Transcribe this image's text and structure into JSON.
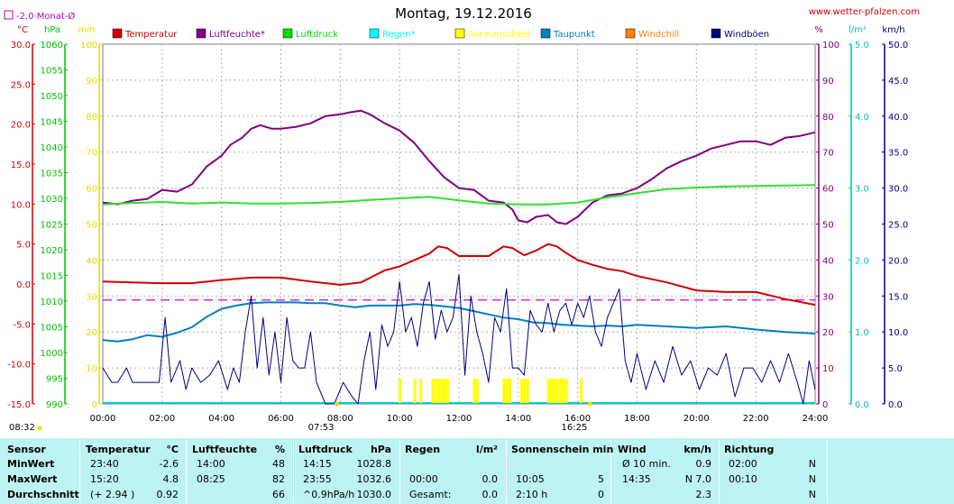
{
  "site": "www.wetter-pfalzen.com",
  "chart_data": {
    "type": "line",
    "title": "Montag, 19.12.2016",
    "monthly_avg_label": "-2.0 Monat-Ø",
    "monthly_avg_value": -2.0,
    "legend": [
      {
        "name": "Temperatur",
        "color": "#d00000"
      },
      {
        "name": "Luftfeuchte*",
        "color": "#800080"
      },
      {
        "name": "Luftdruck",
        "color": "#00e000"
      },
      {
        "name": "Regen*",
        "color": "#00ffff"
      },
      {
        "name": "Sonnenschein",
        "color": "#ffff00"
      },
      {
        "name": "Taupunkt",
        "color": "#0080c0"
      },
      {
        "name": "Windchill",
        "color": "#ff8000"
      },
      {
        "name": "Windböen",
        "color": "#000080"
      }
    ],
    "axes": {
      "temp": {
        "unit": "°C",
        "ylim": [
          -15,
          30
        ],
        "ticks": [
          "30.0",
          "25.0",
          "20.0",
          "15.0",
          "10.0",
          "5.0",
          "0.0",
          "-5.0",
          "-10.0",
          "-15.0"
        ],
        "color": "#d00000"
      },
      "pressure": {
        "unit": "hPa",
        "ylim": [
          990,
          1060
        ],
        "ticks": [
          "1060",
          "1055",
          "1050",
          "1045",
          "1040",
          "1035",
          "1030",
          "1025",
          "1020",
          "1015",
          "1010",
          "1005",
          "1000",
          "995",
          "990"
        ],
        "color": "#00c000"
      },
      "sunmin": {
        "unit": "min",
        "ylim": [
          0,
          100
        ],
        "ticks": [
          "100",
          "90",
          "80",
          "70",
          "60",
          "50",
          "40",
          "30",
          "20",
          "10",
          "0"
        ],
        "color": "#e0e000"
      },
      "humidity": {
        "unit": "%",
        "ylim": [
          0,
          100
        ],
        "ticks": [
          "100",
          "90",
          "80",
          "70",
          "60",
          "50",
          "40",
          "30",
          "20",
          "10",
          "0"
        ],
        "color": "#800080"
      },
      "rain": {
        "unit": "l/m²",
        "ylim": [
          0,
          5
        ],
        "ticks": [
          "5.0",
          "4.0",
          "3.0",
          "2.0",
          "1.0",
          "0.0"
        ],
        "color": "#00c0c0"
      },
      "wind": {
        "unit": "km/h",
        "ylim": [
          0,
          50
        ],
        "ticks": [
          "50.0",
          "45.0",
          "40.0",
          "35.0",
          "30.0",
          "25.0",
          "20.0",
          "15.0",
          "10.0",
          "5.0",
          "0.0"
        ],
        "color": "#000080"
      }
    },
    "xticks": [
      "00:00",
      "02:00",
      "04:00",
      "06:00",
      "08:00",
      "10:00",
      "12:00",
      "14:00",
      "16:00",
      "18:00",
      "20:00",
      "22:00",
      "24:00"
    ],
    "sunrise": "07:53",
    "sunset": "16:25",
    "sunshine_start": "08:32",
    "series": [
      {
        "name": "Temperatur",
        "axis": "temp",
        "x": [
          0,
          1,
          2,
          3,
          4,
          5,
          6,
          7,
          8,
          8.7,
          9.5,
          10,
          10.5,
          11,
          11.3,
          11.6,
          12,
          12.5,
          13,
          13.5,
          13.8,
          14.2,
          14.6,
          15,
          15.3,
          15.6,
          16,
          16.5,
          17,
          17.5,
          18,
          19,
          20,
          21,
          22,
          23,
          24
        ],
        "y": [
          0.3,
          0.2,
          0.1,
          0.1,
          0.5,
          0.8,
          0.8,
          0.3,
          -0.1,
          0.2,
          1.7,
          2.2,
          3.0,
          3.8,
          4.7,
          4.5,
          3.5,
          3.5,
          3.5,
          4.7,
          4.5,
          3.6,
          4.2,
          5.0,
          4.7,
          3.9,
          3.0,
          2.4,
          1.9,
          1.6,
          1.0,
          0.2,
          -0.8,
          -1.0,
          -1.0,
          -1.9,
          -2.6
        ]
      },
      {
        "name": "Luftfeuchte*",
        "axis": "humidity",
        "x": [
          0,
          0.5,
          1,
          1.5,
          2,
          2.5,
          3,
          3.5,
          4,
          4.3,
          4.7,
          5,
          5.3,
          5.7,
          6,
          6.5,
          7,
          7.5,
          8,
          8.3,
          8.7,
          9,
          9.5,
          10,
          10.5,
          11,
          11.5,
          12,
          12.5,
          13,
          13.5,
          13.8,
          14,
          14.3,
          14.6,
          15,
          15.3,
          15.6,
          16,
          16.5,
          17,
          17.5,
          18,
          18.5,
          19,
          19.5,
          20,
          20.5,
          21,
          21.5,
          22,
          22.5,
          23,
          23.5,
          24
        ],
        "y": [
          56,
          55.5,
          56.5,
          57,
          59.5,
          59,
          61,
          66,
          69,
          72,
          74,
          76.5,
          77.5,
          76.5,
          76.5,
          77,
          78,
          80,
          80.5,
          81,
          81.5,
          80.5,
          78,
          76,
          72.5,
          67.5,
          63,
          60,
          59.5,
          56.5,
          56,
          54,
          51,
          50.5,
          52,
          52.5,
          50.5,
          50,
          52,
          56,
          58,
          58.5,
          60,
          62.5,
          65.5,
          67.5,
          69,
          71,
          72,
          73,
          73,
          72,
          74,
          74.5,
          75.5
        ]
      },
      {
        "name": "Luftdruck",
        "axis": "pressure",
        "x": [
          0,
          1,
          2,
          3,
          4,
          5,
          6,
          7,
          8,
          9,
          10,
          11,
          12,
          13,
          14,
          15,
          16,
          17,
          18,
          19,
          20,
          21,
          22,
          23,
          24
        ],
        "y": [
          1028.8,
          1029.1,
          1029.3,
          1029.0,
          1029.2,
          1029.0,
          1029.0,
          1029.1,
          1029.3,
          1029.7,
          1030.0,
          1030.3,
          1029.6,
          1029.0,
          1028.8,
          1028.8,
          1029.2,
          1030.2,
          1031.0,
          1031.8,
          1032.1,
          1032.3,
          1032.4,
          1032.5,
          1032.6
        ]
      },
      {
        "name": "Taupunkt",
        "axis": "temp",
        "x": [
          0,
          0.5,
          1,
          1.5,
          2,
          2.5,
          3,
          3.5,
          4,
          4.5,
          5,
          5.5,
          6,
          6.5,
          7,
          7.5,
          8,
          8.5,
          9,
          9.5,
          10,
          10.5,
          11,
          11.5,
          12,
          12.5,
          13,
          13.5,
          14,
          14.5,
          15,
          15.5,
          16,
          16.5,
          17,
          17.5,
          18,
          19,
          20,
          21,
          22,
          23,
          24
        ],
        "y": [
          -7.0,
          -7.2,
          -6.9,
          -6.4,
          -6.6,
          -6.1,
          -5.4,
          -4.1,
          -3.1,
          -2.7,
          -2.4,
          -2.3,
          -2.3,
          -2.3,
          -2.4,
          -2.4,
          -2.7,
          -2.9,
          -2.7,
          -2.7,
          -2.7,
          -2.5,
          -2.6,
          -2.8,
          -3.0,
          -3.4,
          -3.8,
          -4.2,
          -4.4,
          -4.8,
          -4.9,
          -5.1,
          -5.2,
          -5.3,
          -5.2,
          -5.3,
          -5.1,
          -5.3,
          -5.5,
          -5.3,
          -5.7,
          -6.0,
          -6.2
        ]
      },
      {
        "name": "Windböen",
        "axis": "wind",
        "x": [
          0,
          0.3,
          0.5,
          0.8,
          1,
          1.3,
          1.6,
          1.9,
          2.1,
          2.3,
          2.6,
          2.8,
          3,
          3.3,
          3.6,
          3.9,
          4.2,
          4.4,
          4.6,
          4.8,
          5,
          5.2,
          5.4,
          5.6,
          5.8,
          6,
          6.2,
          6.4,
          6.6,
          6.8,
          7,
          7.2,
          7.5,
          7.8,
          8.1,
          8.4,
          8.6,
          8.8,
          9,
          9.2,
          9.4,
          9.6,
          9.8,
          10,
          10.2,
          10.4,
          10.6,
          10.8,
          11,
          11.2,
          11.4,
          11.6,
          11.8,
          12,
          12.2,
          12.4,
          12.6,
          12.8,
          13,
          13.2,
          13.4,
          13.6,
          13.8,
          14,
          14.2,
          14.4,
          14.6,
          14.8,
          15,
          15.2,
          15.4,
          15.6,
          15.8,
          16,
          16.2,
          16.4,
          16.6,
          16.8,
          17,
          17.2,
          17.4,
          17.6,
          17.8,
          18,
          18.3,
          18.6,
          18.9,
          19.2,
          19.5,
          19.8,
          20.1,
          20.4,
          20.7,
          21,
          21.3,
          21.6,
          21.9,
          22.2,
          22.5,
          22.8,
          23.1,
          23.4,
          23.6,
          23.8,
          24
        ],
        "y": [
          5,
          3,
          3,
          5,
          3,
          3,
          3,
          3,
          12,
          3,
          6,
          2,
          5,
          3,
          4,
          6,
          2,
          5,
          3,
          10,
          15,
          5,
          12,
          4,
          10,
          3,
          12,
          6,
          5,
          5,
          10,
          3,
          0,
          0,
          3,
          1,
          0,
          6,
          10,
          2,
          11,
          8,
          10,
          17,
          10,
          12,
          8,
          14,
          17,
          9,
          13,
          10,
          12,
          18,
          4,
          15,
          10,
          7,
          3,
          12,
          10,
          16,
          5,
          5,
          4,
          13,
          11,
          10,
          14,
          10,
          13,
          14,
          11,
          14,
          12,
          15,
          10,
          8,
          12,
          14,
          16,
          6,
          3,
          7,
          2,
          6,
          3,
          8,
          4,
          6,
          2,
          5,
          4,
          7,
          1,
          5,
          5,
          3,
          6,
          3,
          7,
          3,
          0,
          6,
          2
        ]
      },
      {
        "name": "Sonnenschein",
        "axis": "sunmin",
        "x": [
          10.0,
          10.5,
          10.7,
          11.1,
          11.2,
          11.3,
          11.4,
          11.5,
          11.6,
          12.5,
          12.6,
          13.5,
          13.6,
          13.7,
          14.1,
          14.2,
          14.3,
          15.0,
          15.1,
          15.2,
          15.3,
          15.4,
          15.5,
          15.6,
          16.1
        ],
        "y": [
          5,
          5,
          5,
          5,
          5,
          5,
          5,
          5,
          5,
          5,
          5,
          5,
          5,
          5,
          5,
          5,
          5,
          5,
          5,
          5,
          5,
          5,
          5,
          5,
          5
        ]
      }
    ]
  },
  "table": {
    "headers": {
      "sensor": "Sensor",
      "temp": "Temperatur",
      "temp_unit": "°C",
      "hum": "Luftfeuchte",
      "hum_unit": "%",
      "press": "Luftdruck",
      "press_unit": "hPa",
      "rain": "Regen",
      "rain_unit": "l/m²",
      "sun": "Sonnenschein min",
      "wind": "Wind",
      "wind_unit": "km/h",
      "dir": "Richtung"
    },
    "rows": [
      {
        "label": "MinWert",
        "temp_time": "23:40",
        "temp_val": "-2.6",
        "hum_time": "14:00",
        "hum_val": "48",
        "press_time": "14:15",
        "press_val": "1028.8",
        "rain_time": "",
        "rain_val": "",
        "sun_time": "",
        "sun_val": "",
        "wind_time": "Ø 10 min.",
        "wind_val": "0.9",
        "dir_time": "02:00",
        "dir_val": "N"
      },
      {
        "label": "MaxWert",
        "temp_time": "15:20",
        "temp_val": "4.8",
        "hum_time": "08:25",
        "hum_val": "82",
        "press_time": "23:55",
        "press_val": "1032.6",
        "rain_time": "00:00",
        "rain_val": "0.0",
        "sun_time": "10:05",
        "sun_val": "5",
        "wind_time": "14:35",
        "wind_val": "N 7.0",
        "dir_time": "00:10",
        "dir_val": "N"
      },
      {
        "label": "Durchschnitt",
        "temp_time": "(+ 2.94 )",
        "temp_val": "0.92",
        "hum_time": "",
        "hum_val": "66",
        "press_time": "^0.9hPa/h",
        "press_val": "1030.0",
        "rain_time": "Gesamt:",
        "rain_val": "0.0",
        "sun_time": "2:10 h",
        "sun_val": "0",
        "wind_time": "",
        "wind_val": "2.3",
        "dir_time": "",
        "dir_val": "N"
      }
    ]
  }
}
